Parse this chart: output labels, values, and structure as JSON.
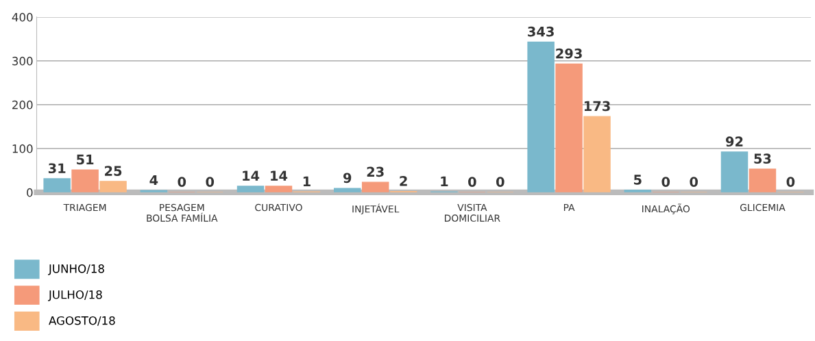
{
  "chart_data": {
    "type": "bar",
    "categories": [
      "TRIAGEM",
      "PESAGEM\nBOLSA FAMÍLIA",
      "CURATIVO",
      "INJETÁVEL",
      "VISITA\nDOMICILIAR",
      "PA",
      "INALAÇÃO",
      "GLICEMIA"
    ],
    "series": [
      {
        "name": "JUNHO/18",
        "color": "#7ab8cc",
        "values": [
          31,
          4,
          14,
          9,
          1,
          343,
          5,
          92
        ]
      },
      {
        "name": "JULHO/18",
        "color": "#f59a7a",
        "values": [
          51,
          0,
          14,
          23,
          0,
          293,
          0,
          53
        ]
      },
      {
        "name": "AGOSTO/18",
        "color": "#f9b984",
        "values": [
          25,
          0,
          1,
          2,
          0,
          173,
          0,
          0
        ]
      }
    ],
    "ylim": [
      0,
      400
    ],
    "yticks": [
      0,
      100,
      200,
      300,
      400
    ],
    "grid": "y",
    "data_labels": true,
    "legend": "bottom left"
  }
}
